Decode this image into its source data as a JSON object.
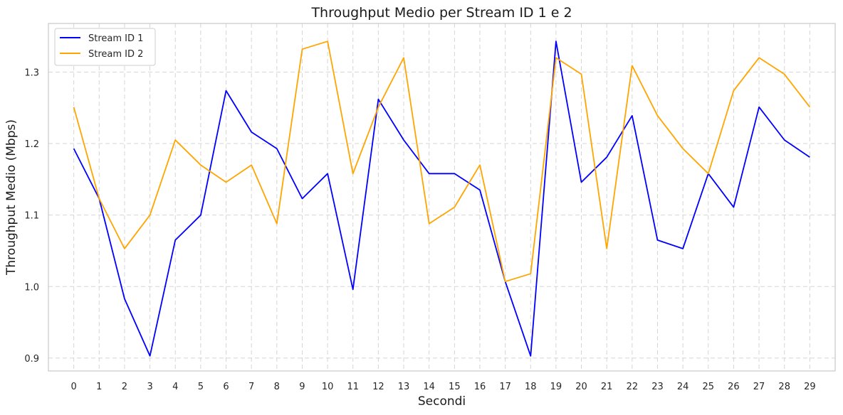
{
  "chart_data": {
    "type": "line",
    "title": "Throughput Medio per Stream ID 1 e 2",
    "xlabel": "Secondi",
    "ylabel": "Throughput Medio (Mbps)",
    "x": [
      0,
      1,
      2,
      3,
      4,
      5,
      6,
      7,
      8,
      9,
      10,
      11,
      12,
      13,
      14,
      15,
      16,
      17,
      18,
      19,
      20,
      21,
      22,
      23,
      24,
      25,
      26,
      27,
      28,
      29
    ],
    "x_tick_labels": [
      "0",
      "1",
      "2",
      "3",
      "4",
      "5",
      "6",
      "7",
      "8",
      "9",
      "10",
      "11",
      "12",
      "13",
      "14",
      "15",
      "16",
      "17",
      "18",
      "19",
      "20",
      "21",
      "22",
      "23",
      "24",
      "25",
      "26",
      "27",
      "28",
      "29"
    ],
    "xlim": [
      -1.0,
      30.0
    ],
    "ylim": [
      0.882,
      1.368
    ],
    "y_ticks": [
      0.9,
      1.0,
      1.1,
      1.2,
      1.3
    ],
    "y_tick_labels": [
      "0.9",
      "1.0",
      "1.1",
      "1.2",
      "1.3"
    ],
    "grid": true,
    "legend_position": "top-left",
    "series": [
      {
        "name": "Stream ID 1",
        "color": "#0000ff",
        "values": [
          1.193,
          1.123,
          0.983,
          0.903,
          1.065,
          1.1,
          1.274,
          1.216,
          1.193,
          1.123,
          1.158,
          0.996,
          1.262,
          1.205,
          1.158,
          1.158,
          1.135,
          1.007,
          0.903,
          1.343,
          1.146,
          1.181,
          1.239,
          1.065,
          1.053,
          1.158,
          1.111,
          1.251,
          1.205,
          1.181
        ]
      },
      {
        "name": "Stream ID 2",
        "color": "#ffa500",
        "values": [
          1.251,
          1.123,
          1.053,
          1.1,
          1.205,
          1.17,
          1.146,
          1.17,
          1.088,
          1.332,
          1.343,
          1.158,
          1.251,
          1.32,
          1.088,
          1.111,
          1.17,
          1.007,
          1.018,
          1.32,
          1.297,
          1.053,
          1.309,
          1.239,
          1.193,
          1.158,
          1.274,
          1.32,
          1.297,
          1.251
        ]
      }
    ]
  }
}
